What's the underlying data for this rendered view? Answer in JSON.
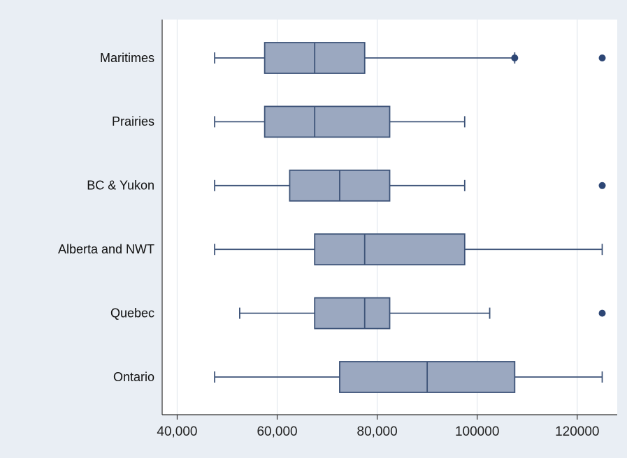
{
  "chart_data": {
    "type": "boxplot",
    "orientation": "horizontal",
    "title": "",
    "xlabel": "",
    "ylabel": "",
    "xlim": [
      37000,
      128000
    ],
    "x_ticks": [
      {
        "value": 40000,
        "label": "40,000"
      },
      {
        "value": 60000,
        "label": "60,000"
      },
      {
        "value": 80000,
        "label": "80,000"
      },
      {
        "value": 100000,
        "label": "100000"
      },
      {
        "value": 120000,
        "label": "120000"
      }
    ],
    "grid": true,
    "colors": {
      "box_fill": "#9ba8c0",
      "line": "#3d5378",
      "outlier": "#2d4675",
      "plot_bg": "#ffffff",
      "outer_bg": "#e9eef4"
    },
    "categories": [
      {
        "name": "Maritimes",
        "min": 47500,
        "q1": 57500,
        "median": 67500,
        "q3": 77500,
        "max": 107500,
        "outliers": [
          107500,
          125000
        ]
      },
      {
        "name": "Prairies",
        "min": 47500,
        "q1": 57500,
        "median": 67500,
        "q3": 82500,
        "max": 97500,
        "outliers": []
      },
      {
        "name": "BC & Yukon",
        "min": 47500,
        "q1": 62500,
        "median": 72500,
        "q3": 82500,
        "max": 97500,
        "outliers": [
          125000
        ]
      },
      {
        "name": "Alberta and NWT",
        "min": 47500,
        "q1": 67500,
        "median": 77500,
        "q3": 97500,
        "max": 125000,
        "outliers": []
      },
      {
        "name": "Quebec",
        "min": 52500,
        "q1": 67500,
        "median": 77500,
        "q3": 82500,
        "max": 102500,
        "outliers": [
          125000
        ]
      },
      {
        "name": "Ontario",
        "min": 47500,
        "q1": 72500,
        "median": 90000,
        "q3": 107500,
        "max": 125000,
        "outliers": []
      }
    ]
  }
}
